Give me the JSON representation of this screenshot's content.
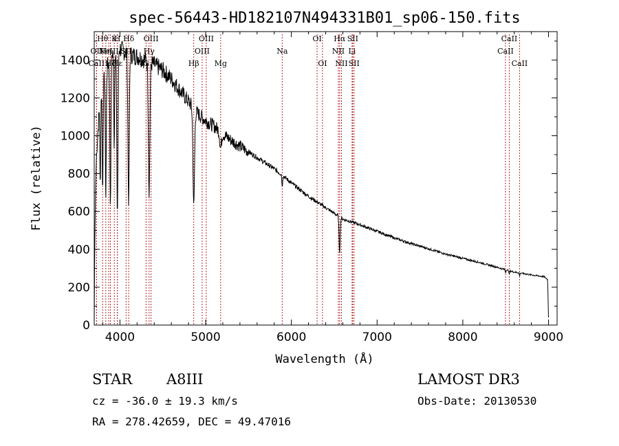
{
  "chart_data": {
    "type": "line",
    "title": "spec-56443-HD182107N494331B01_sp06-150.fits",
    "xlabel": "Wavelength (Å)",
    "ylabel": "Flux (relative)",
    "xlim": [
      3700,
      9100
    ],
    "ylim": [
      0,
      1550
    ],
    "xticks": [
      4000,
      5000,
      6000,
      7000,
      8000,
      9000
    ],
    "yticks": [
      0,
      200,
      400,
      600,
      800,
      1000,
      1200,
      1400
    ],
    "continuum": [
      [
        3700,
        0
      ],
      [
        3705,
        380
      ],
      [
        3715,
        700
      ],
      [
        3725,
        880
      ],
      [
        3740,
        1000
      ],
      [
        3760,
        1150
      ],
      [
        3790,
        1250
      ],
      [
        3850,
        1360
      ],
      [
        3900,
        1430
      ],
      [
        3950,
        1470
      ],
      [
        4000,
        1460
      ],
      [
        4100,
        1430
      ],
      [
        4200,
        1420
      ],
      [
        4300,
        1400
      ],
      [
        4400,
        1375
      ],
      [
        4500,
        1345
      ],
      [
        4600,
        1300
      ],
      [
        4700,
        1240
      ],
      [
        4800,
        1180
      ],
      [
        4900,
        1120
      ],
      [
        5000,
        1080
      ],
      [
        5100,
        1050
      ],
      [
        5200,
        1010
      ],
      [
        5300,
        975
      ],
      [
        5400,
        945
      ],
      [
        5500,
        915
      ],
      [
        5600,
        885
      ],
      [
        5700,
        855
      ],
      [
        5800,
        825
      ],
      [
        5900,
        790
      ],
      [
        6000,
        750
      ],
      [
        6100,
        715
      ],
      [
        6200,
        680
      ],
      [
        6300,
        650
      ],
      [
        6400,
        620
      ],
      [
        6500,
        590
      ],
      [
        6600,
        560
      ],
      [
        6700,
        545
      ],
      [
        6800,
        530
      ],
      [
        6900,
        512
      ],
      [
        7000,
        495
      ],
      [
        7200,
        460
      ],
      [
        7400,
        430
      ],
      [
        7600,
        403
      ],
      [
        7800,
        375
      ],
      [
        8000,
        352
      ],
      [
        8200,
        330
      ],
      [
        8400,
        305
      ],
      [
        8500,
        292
      ],
      [
        8600,
        280
      ],
      [
        8800,
        265
      ],
      [
        8950,
        255
      ],
      [
        8990,
        240
      ],
      [
        9000,
        40
      ]
    ],
    "absorption_lines": [
      {
        "center": 3770,
        "depth": 0.4,
        "width": 6
      },
      {
        "center": 3798,
        "depth": 0.45,
        "width": 7
      },
      {
        "center": 3835,
        "depth": 0.5,
        "width": 8
      },
      {
        "center": 3889,
        "depth": 0.55,
        "width": 9
      },
      {
        "center": 3933,
        "depth": 0.35,
        "width": 7
      },
      {
        "center": 3970,
        "depth": 0.6,
        "width": 10
      },
      {
        "center": 4101,
        "depth": 0.55,
        "width": 11
      },
      {
        "center": 4340,
        "depth": 0.5,
        "width": 12
      },
      {
        "center": 4861,
        "depth": 0.45,
        "width": 13
      },
      {
        "center": 5175,
        "depth": 0.08,
        "width": 15
      },
      {
        "center": 5893,
        "depth": 0.08,
        "width": 6
      },
      {
        "center": 6563,
        "depth": 0.33,
        "width": 9
      },
      {
        "center": 8498,
        "depth": 0.05,
        "width": 5
      },
      {
        "center": 8542,
        "depth": 0.07,
        "width": 5
      },
      {
        "center": 8662,
        "depth": 0.06,
        "width": 5
      }
    ],
    "marker_lines": [
      {
        "label": "Hθ",
        "wavelength": 3798,
        "row": 0
      },
      {
        "label": "K",
        "wavelength": 3934,
        "row": 0
      },
      {
        "label": "H",
        "wavelength": 3969,
        "row": 0
      },
      {
        "label": "Hδ",
        "wavelength": 4102,
        "row": 0
      },
      {
        "label": "OII",
        "wavelength": 3727,
        "row": 1
      },
      {
        "label": "Hη",
        "wavelength": 3835,
        "row": 1
      },
      {
        "label": "NeIII",
        "wavelength": 3869,
        "row": 1
      },
      {
        "label": "SII",
        "wavelength": 4072,
        "row": 1
      },
      {
        "label": "CaII",
        "wavelength": 3727,
        "row": 2
      },
      {
        "label": "Hζ",
        "wavelength": 3889,
        "row": 2
      },
      {
        "label": "Hε",
        "wavelength": 3970,
        "row": 2
      },
      {
        "label": "OIII",
        "wavelength": 4363,
        "row": 0
      },
      {
        "label": "Hγ",
        "wavelength": 4340,
        "row": 1
      },
      {
        "label": "G",
        "wavelength": 4305,
        "row": 2
      },
      {
        "label": "OIII",
        "wavelength": 5007,
        "row": 0
      },
      {
        "label": "OIII",
        "wavelength": 4959,
        "row": 1
      },
      {
        "label": "Hβ",
        "wavelength": 4861,
        "row": 2
      },
      {
        "label": "Mg",
        "wavelength": 5175,
        "row": 2
      },
      {
        "label": "Na",
        "wavelength": 5893,
        "row": 1
      },
      {
        "label": "OI",
        "wavelength": 6300,
        "row": 0
      },
      {
        "label": "OI",
        "wavelength": 6363,
        "row": 2
      },
      {
        "label": "Hα",
        "wavelength": 6563,
        "row": 0
      },
      {
        "label": "SII",
        "wavelength": 6716,
        "row": 0
      },
      {
        "label": "NII",
        "wavelength": 6548,
        "row": 1
      },
      {
        "label": "Li",
        "wavelength": 6708,
        "row": 1
      },
      {
        "label": "NII",
        "wavelength": 6584,
        "row": 2
      },
      {
        "label": "SII",
        "wavelength": 6731,
        "row": 2
      },
      {
        "label": "CaII",
        "wavelength": 8542,
        "row": 0
      },
      {
        "label": "CaII",
        "wavelength": 8498,
        "row": 1
      },
      {
        "label": "CaII",
        "wavelength": 8662,
        "row": 2
      }
    ],
    "line_color": "#000000",
    "marker_color": "#b22222"
  },
  "info": {
    "object_class": "STAR",
    "subclass": "A8III",
    "survey": "LAMOST DR3",
    "cz": "cz = -36.0 ± 19.3 km/s",
    "obs_date": "Obs-Date: 20130530",
    "coords": "RA = 278.42659, DEC =  49.47016"
  }
}
